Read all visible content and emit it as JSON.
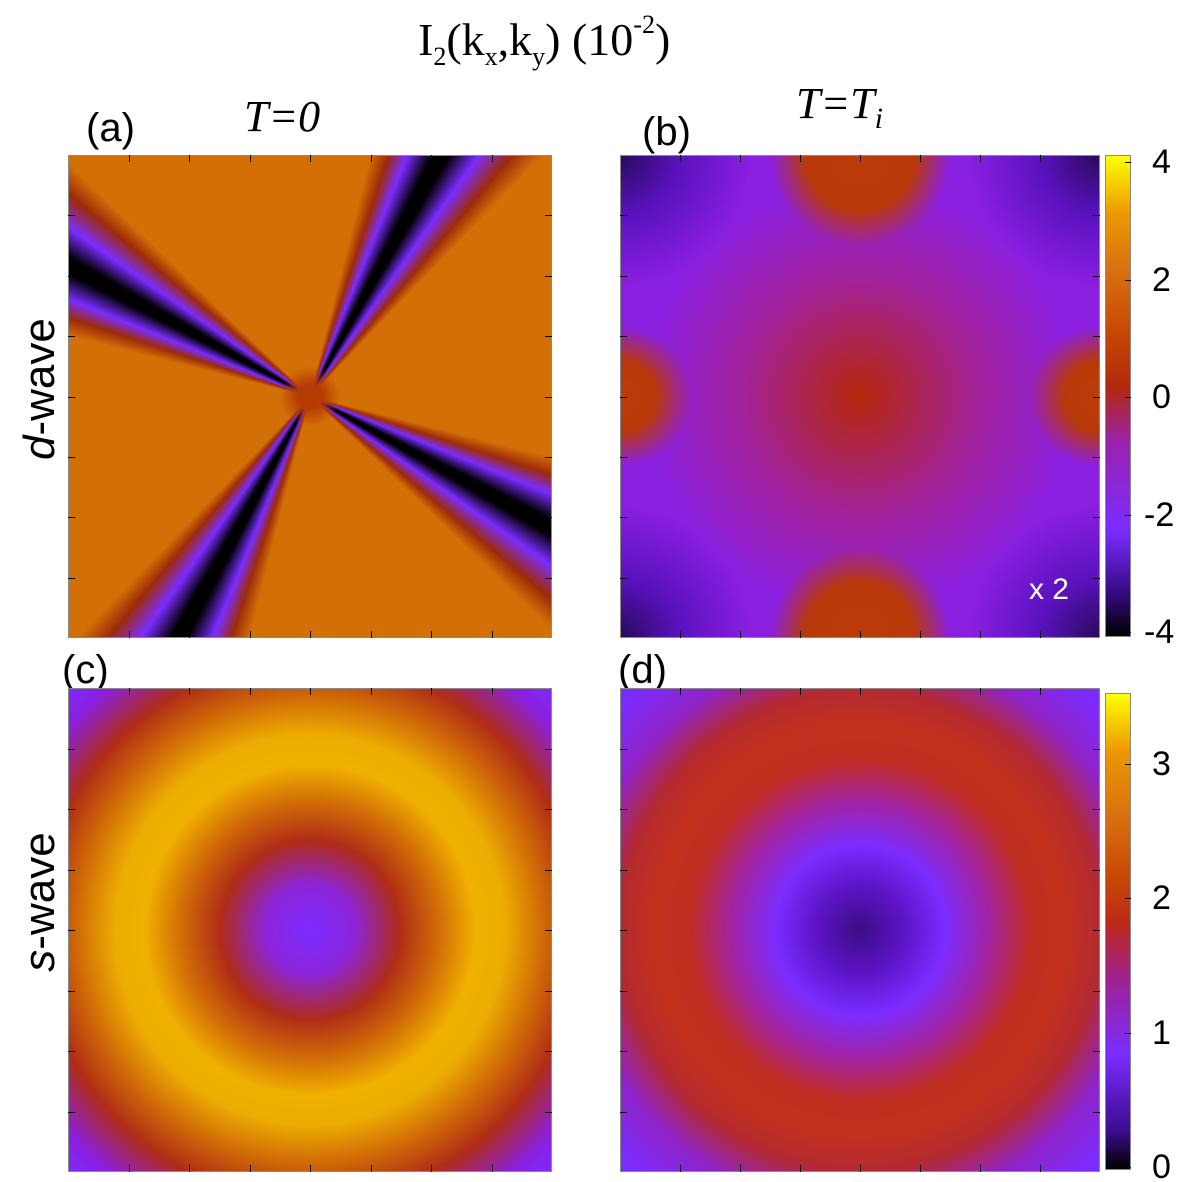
{
  "figure": {
    "title": {
      "base": "I",
      "sub2": "2",
      "open": "(k",
      "kx_sub": "x",
      "comma": ",k",
      "ky_sub": "y",
      "close": ") (10",
      "exp": "-2",
      "end": ")"
    },
    "columns": [
      {
        "prefix": "T=",
        "value": "0",
        "sub": ""
      },
      {
        "prefix": "T=",
        "value": "T",
        "sub": "i"
      }
    ],
    "rows": [
      {
        "symbol": "d",
        "suffix": "-wave"
      },
      {
        "symbol": "s",
        "suffix": "-wave"
      }
    ],
    "panel_labels": [
      "(a)",
      "(b)",
      "(c)",
      "(d)"
    ],
    "multiplier_note": "x 2"
  },
  "chart_data": [
    {
      "type": "heatmap",
      "panel": "(a)",
      "row": "d-wave",
      "column": "T=0",
      "x_range": [
        -1,
        1
      ],
      "y_range": [
        -1,
        1
      ],
      "colormap": "gnuplot",
      "color_range": [
        -4,
        4
      ],
      "pattern": "uniform value ≈ 2.3 background with two crossing diagonal bands (X shape) through the center; bands are negative (≈ -2 at edges to -4 at black cores) near the corners and fade to ≈ 0 at the center",
      "center_value": 0,
      "background_value": 2.3,
      "band_min_value": -4
    },
    {
      "type": "heatmap",
      "panel": "(b)",
      "row": "d-wave",
      "column": "T=T_i",
      "x_range": [
        -1,
        1
      ],
      "y_range": [
        -1,
        1
      ],
      "colormap": "gnuplot",
      "color_range": [
        -4,
        4
      ],
      "multiplier": "x 2",
      "pattern": "mostly negative (≈ -2) background; ≈ 0 at center and at top, bottom, left and right edge midpoints (≈ 0.5); darkest ≈ -3.5 at the four corners",
      "center_value": 0,
      "edge_midpoint_value": 0.5,
      "corner_value": -3.5,
      "colorbar": {
        "ticks": [
          4,
          2,
          0,
          -2,
          -4
        ]
      }
    },
    {
      "type": "heatmap",
      "panel": "(c)",
      "row": "s-wave",
      "column": "T=0",
      "x_range": [
        -1,
        1
      ],
      "y_range": [
        -1,
        1
      ],
      "colormap": "gnuplot",
      "color_range": [
        0,
        3.5
      ],
      "pattern": "radially symmetric ring: ≈ 1.1 at center, peaks ≈ 3.0 at radius ≈ 0.7, falls to ≈ 1.0 at the corners",
      "center_value": 1.1,
      "ring_peak_value": 3.0,
      "ring_radius": 0.7,
      "corner_value": 1.0
    },
    {
      "type": "heatmap",
      "panel": "(d)",
      "row": "s-wave",
      "column": "T=T_i",
      "x_range": [
        -1,
        1
      ],
      "y_range": [
        -1,
        1
      ],
      "colormap": "gnuplot",
      "color_range": [
        0,
        3.5
      ],
      "pattern": "radially symmetric: minimum ≈ 0.6 at center, broad ring ≈ 2.0 at radius ≈ 0.75, ≈ 1.1 at the corners",
      "center_value": 0.6,
      "ring_peak_value": 2.0,
      "ring_radius": 0.75,
      "corner_value": 1.1,
      "colorbar": {
        "ticks": [
          3,
          2,
          1,
          0
        ]
      }
    }
  ]
}
